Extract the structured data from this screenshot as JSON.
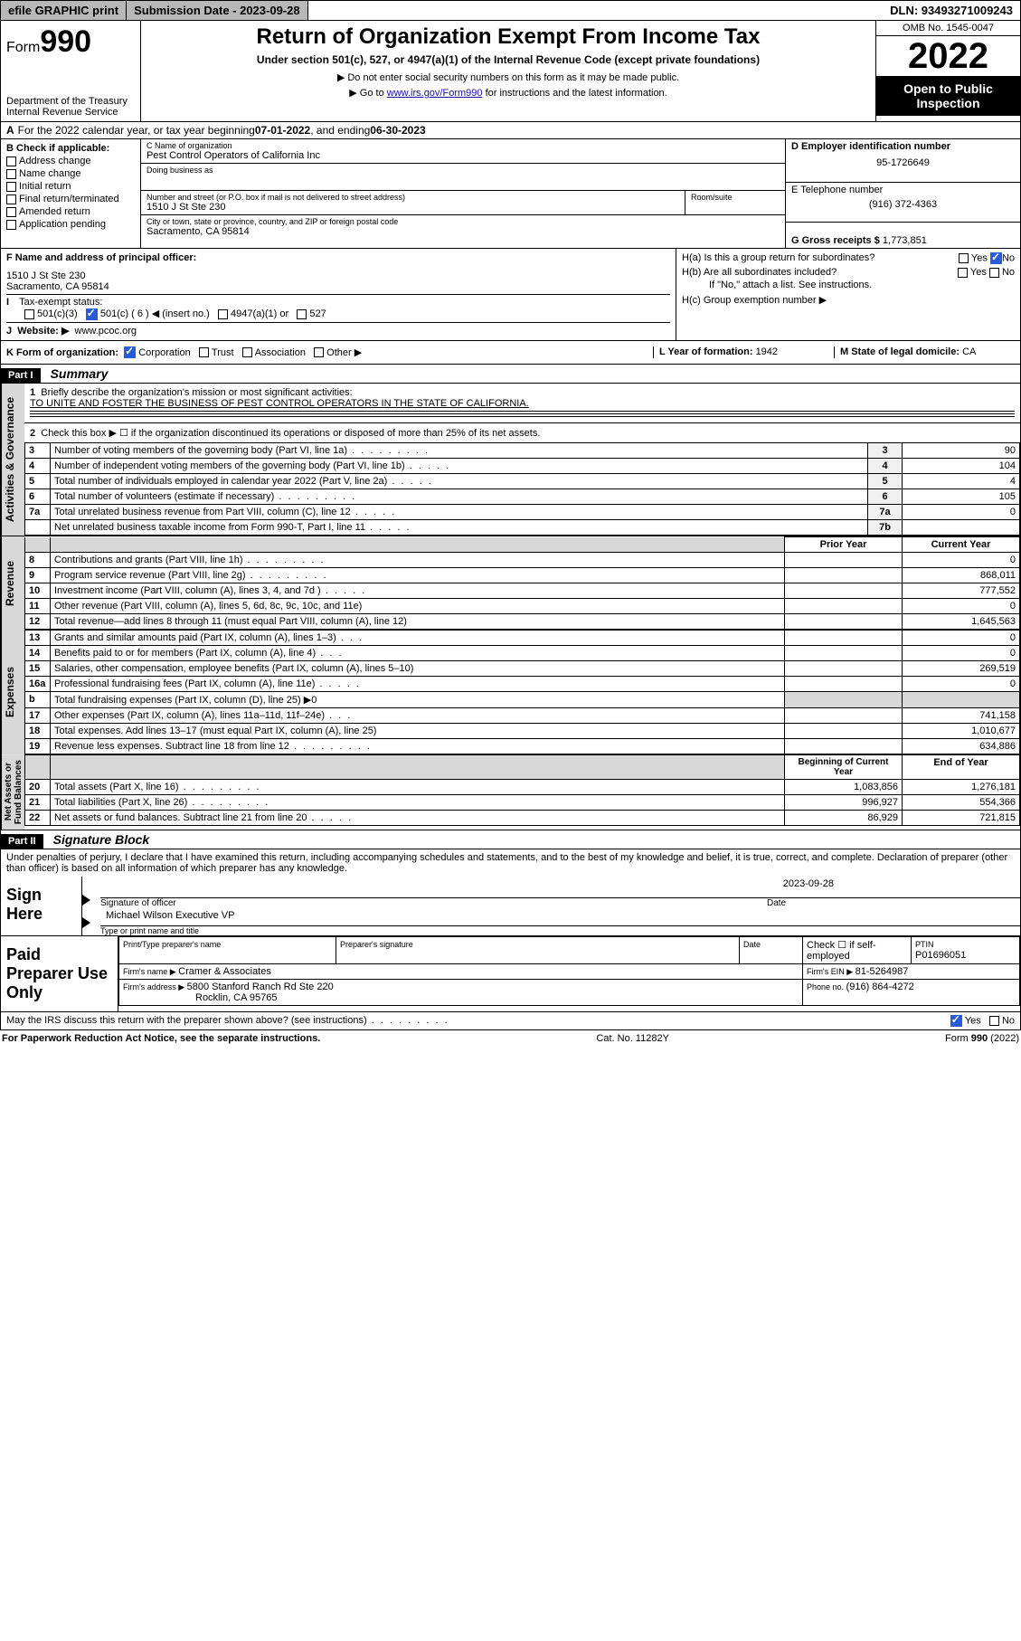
{
  "topbar": {
    "efile": "efile GRAPHIC print",
    "subdate_label": "Submission Date - 2023-09-28",
    "dln": "DLN: 93493271009243"
  },
  "header": {
    "form_prefix": "Form",
    "form_num": "990",
    "dept": "Department of the Treasury",
    "irs": "Internal Revenue Service",
    "title": "Return of Organization Exempt From Income Tax",
    "subtitle": "Under section 501(c), 527, or 4947(a)(1) of the Internal Revenue Code (except private foundations)",
    "line1": "▶ Do not enter social security numbers on this form as it may be made public.",
    "line2_pre": "▶ Go to ",
    "line2_link": "www.irs.gov/Form990",
    "line2_post": " for instructions and the latest information.",
    "omb": "OMB No. 1545-0047",
    "year": "2022",
    "openpub": "Open to Public Inspection"
  },
  "period": {
    "text_a": "For the 2022 calendar year, or tax year beginning ",
    "begin": "07-01-2022",
    "text_b": " , and ending ",
    "end": "06-30-2023"
  },
  "sectionB": {
    "label": "B Check if applicable:",
    "items": [
      "Address change",
      "Name change",
      "Initial return",
      "Final return/terminated",
      "Amended return",
      "Application pending"
    ]
  },
  "sectionC": {
    "name_lbl": "C Name of organization",
    "name": "Pest Control Operators of California Inc",
    "dba_lbl": "Doing business as",
    "addr_lbl": "Number and street (or P.O. box if mail is not delivered to street address)",
    "room_lbl": "Room/suite",
    "addr": "1510 J St Ste 230",
    "city_lbl": "City or town, state or province, country, and ZIP or foreign postal code",
    "city": "Sacramento, CA  95814"
  },
  "sectionD": {
    "ein_lbl": "D Employer identification number",
    "ein": "95-1726649",
    "tel_lbl": "E Telephone number",
    "tel": "(916) 372-4363",
    "gross_lbl": "G Gross receipts $ ",
    "gross": "1,773,851"
  },
  "sectionF": {
    "label": "F Name and address of principal officer:",
    "addr1": "1510 J St Ste 230",
    "addr2": "Sacramento, CA  95814"
  },
  "sectionH": {
    "ha": "H(a)  Is this a group return for subordinates?",
    "hb": "H(b)  Are all subordinates included?",
    "hb_note": "If \"No,\" attach a list. See instructions.",
    "hc": "H(c)  Group exemption number ▶",
    "yes": "Yes",
    "no": "No"
  },
  "taxstatus": {
    "label": "Tax-exempt status:",
    "opts": [
      "501(c)(3)",
      "501(c) ( 6 ) ◀ (insert no.)",
      "4947(a)(1) or",
      "527"
    ]
  },
  "website": {
    "label": "Website: ▶",
    "val": "www.pcoc.org"
  },
  "formK": {
    "label": "K Form of organization:",
    "opts": [
      "Corporation",
      "Trust",
      "Association",
      "Other ▶"
    ]
  },
  "formL": {
    "label": "L Year of formation: ",
    "val": "1942"
  },
  "formM": {
    "label": "M State of legal domicile: ",
    "val": "CA"
  },
  "part1": {
    "hdr": "Part I",
    "title": "Summary",
    "q1": "Briefly describe the organization's mission or most significant activities:",
    "q1_ans": "TO UNITE AND FOSTER THE BUSINESS OF PEST CONTROL OPERATORS IN THE STATE OF CALIFORNIA.",
    "q2": "Check this box ▶ ☐  if the organization discontinued its operations or disposed of more than 25% of its net assets.",
    "lines": [
      {
        "n": "3",
        "lbl": "Number of voting members of the governing body (Part VI, line 1a)",
        "box": "3",
        "val": "90",
        "dots": "dots"
      },
      {
        "n": "4",
        "lbl": "Number of independent voting members of the governing body (Part VI, line 1b)",
        "box": "4",
        "val": "104",
        "dots": "dots-s"
      },
      {
        "n": "5",
        "lbl": "Total number of individuals employed in calendar year 2022 (Part V, line 2a)",
        "box": "5",
        "val": "4",
        "dots": "dots-s"
      },
      {
        "n": "6",
        "lbl": "Total number of volunteers (estimate if necessary)",
        "box": "6",
        "val": "105",
        "dots": "dots"
      },
      {
        "n": "7a",
        "lbl": "Total unrelated business revenue from Part VIII, column (C), line 12",
        "box": "7a",
        "val": "0",
        "dots": "dots-s"
      },
      {
        "n": "",
        "lbl": "Net unrelated business taxable income from Form 990-T, Part I, line 11",
        "box": "7b",
        "val": "",
        "dots": "dots-s"
      }
    ],
    "col_prior": "Prior Year",
    "col_curr": "Current Year"
  },
  "revenue": [
    {
      "n": "8",
      "lbl": "Contributions and grants (Part VIII, line 1h)",
      "cur": "0",
      "dots": "dots"
    },
    {
      "n": "9",
      "lbl": "Program service revenue (Part VIII, line 2g)",
      "cur": "868,011",
      "dots": "dots"
    },
    {
      "n": "10",
      "lbl": "Investment income (Part VIII, column (A), lines 3, 4, and 7d )",
      "cur": "777,552",
      "dots": "dots-s"
    },
    {
      "n": "11",
      "lbl": "Other revenue (Part VIII, column (A), lines 5, 6d, 8c, 9c, 10c, and 11e)",
      "cur": "0",
      "dots": ""
    },
    {
      "n": "12",
      "lbl": "Total revenue—add lines 8 through 11 (must equal Part VIII, column (A), line 12)",
      "cur": "1,645,563",
      "dots": ""
    }
  ],
  "expenses": [
    {
      "n": "13",
      "lbl": "Grants and similar amounts paid (Part IX, column (A), lines 1–3)",
      "cur": "0",
      "dots": "dots-xs"
    },
    {
      "n": "14",
      "lbl": "Benefits paid to or for members (Part IX, column (A), line 4)",
      "cur": "0",
      "dots": "dots-xs"
    },
    {
      "n": "15",
      "lbl": "Salaries, other compensation, employee benefits (Part IX, column (A), lines 5–10)",
      "cur": "269,519",
      "dots": ""
    },
    {
      "n": "16a",
      "lbl": "Professional fundraising fees (Part IX, column (A), line 11e)",
      "cur": "0",
      "dots": "dots-s"
    },
    {
      "n": "b",
      "lbl": "Total fundraising expenses (Part IX, column (D), line 25) ▶0",
      "cur": "gray",
      "dots": ""
    },
    {
      "n": "17",
      "lbl": "Other expenses (Part IX, column (A), lines 11a–11d, 11f–24e)",
      "cur": "741,158",
      "dots": "dots-xs"
    },
    {
      "n": "18",
      "lbl": "Total expenses. Add lines 13–17 (must equal Part IX, column (A), line 25)",
      "cur": "1,010,677",
      "dots": ""
    },
    {
      "n": "19",
      "lbl": "Revenue less expenses. Subtract line 18 from line 12",
      "cur": "634,886",
      "dots": "dots"
    }
  ],
  "netassets": {
    "col_begin": "Beginning of Current Year",
    "col_end": "End of Year",
    "rows": [
      {
        "n": "20",
        "lbl": "Total assets (Part X, line 16)",
        "beg": "1,083,856",
        "end": "1,276,181",
        "dots": "dots"
      },
      {
        "n": "21",
        "lbl": "Total liabilities (Part X, line 26)",
        "beg": "996,927",
        "end": "554,366",
        "dots": "dots"
      },
      {
        "n": "22",
        "lbl": "Net assets or fund balances. Subtract line 21 from line 20",
        "beg": "86,929",
        "end": "721,815",
        "dots": "dots-s"
      }
    ]
  },
  "part2": {
    "hdr": "Part II",
    "title": "Signature Block",
    "penalties": "Under penalties of perjury, I declare that I have examined this return, including accompanying schedules and statements, and to the best of my knowledge and belief, it is true, correct, and complete. Declaration of preparer (other than officer) is based on all information of which preparer has any knowledge."
  },
  "sign": {
    "here": "Sign Here",
    "sig_lbl": "Signature of officer",
    "date_lbl": "Date",
    "date": "2023-09-28",
    "name": "Michael Wilson  Executive VP",
    "name_lbl": "Type or print name and title"
  },
  "preparer": {
    "here": "Paid Preparer Use Only",
    "col1": "Print/Type preparer's name",
    "col2": "Preparer's signature",
    "col3": "Date",
    "check_lbl": "Check ☐ if self-employed",
    "ptin_lbl": "PTIN",
    "ptin": "P01696051",
    "firm_name_lbl": "Firm's name    ▶ ",
    "firm_name": "Cramer & Associates",
    "firm_ein_lbl": "Firm's EIN ▶ ",
    "firm_ein": "81-5264987",
    "firm_addr_lbl": "Firm's address ▶ ",
    "firm_addr": "5800 Stanford Ranch Rd Ste 220",
    "firm_city": "Rocklin, CA  95765",
    "phone_lbl": "Phone no. ",
    "phone": "(916) 864-4272"
  },
  "discuss": "May the IRS discuss this return with the preparer shown above? (see instructions)",
  "footer": {
    "left": "For Paperwork Reduction Act Notice, see the separate instructions.",
    "mid": "Cat. No. 11282Y",
    "right": "Form 990 (2022)"
  },
  "labels": {
    "I": "I",
    "J": "J",
    "A": "A"
  },
  "colors": {
    "topbar_gray": "#b8b8b8",
    "cell_gray": "#d8d8d8",
    "link": "#1a0dab",
    "check_blue": "#2b5cd8"
  }
}
